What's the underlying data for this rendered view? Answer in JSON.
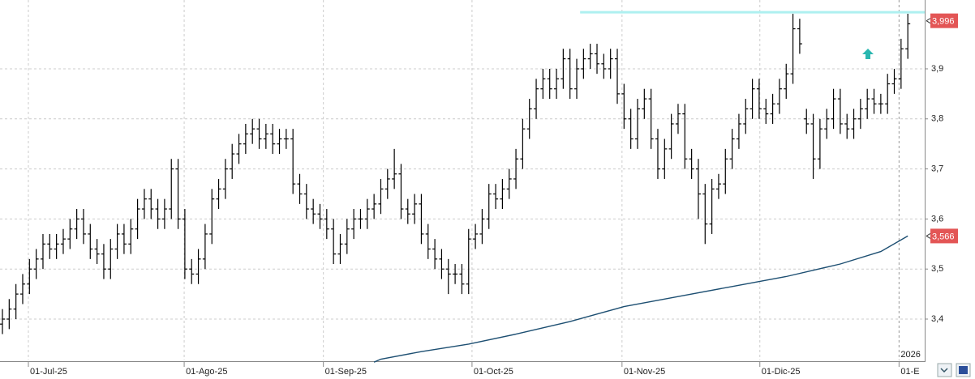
{
  "chart_data": {
    "type": "ohlc",
    "xlim": [
      -0.36,
      136.5
    ],
    "ylim": [
      3.3175,
      4.0375
    ],
    "yticks": [
      {
        "value": 3.4,
        "label": "3,4"
      },
      {
        "value": 3.5,
        "label": "3,5"
      },
      {
        "value": 3.6,
        "label": "3,6"
      },
      {
        "value": 3.7,
        "label": "3,7"
      },
      {
        "value": 3.8,
        "label": "3,8"
      },
      {
        "value": 3.9,
        "label": "3,9"
      }
    ],
    "xticks": [
      {
        "value": 3.84,
        "label": "01-Jul-25"
      },
      {
        "value": 26.9,
        "label": "01-Ago-25"
      },
      {
        "value": 47.5,
        "label": "01-Sep-25"
      },
      {
        "value": 69.5,
        "label": "01-Oct-25"
      },
      {
        "value": 91.7,
        "label": "01-Nov-25"
      },
      {
        "value": 112.1,
        "label": "01-Dic-25"
      },
      {
        "value": 132.7,
        "label": "01-E"
      }
    ],
    "year_label": "2026",
    "grid": true,
    "color": "#000000",
    "open": [
      3.39,
      3.4,
      3.42,
      3.45,
      3.47,
      3.5,
      3.52,
      3.55,
      3.54,
      3.55,
      3.56,
      3.58,
      3.6,
      3.57,
      3.54,
      3.53,
      3.5,
      3.54,
      3.57,
      3.55,
      3.58,
      3.62,
      3.64,
      3.62,
      3.6,
      3.62,
      3.7,
      3.6,
      3.5,
      3.49,
      3.52,
      3.57,
      3.64,
      3.66,
      3.7,
      3.73,
      3.75,
      3.77,
      3.78,
      3.76,
      3.77,
      3.75,
      3.76,
      3.76,
      3.67,
      3.65,
      3.62,
      3.61,
      3.6,
      3.58,
      3.53,
      3.55,
      3.58,
      3.6,
      3.6,
      3.62,
      3.63,
      3.66,
      3.68,
      3.69,
      3.62,
      3.61,
      3.63,
      3.57,
      3.54,
      3.52,
      3.5,
      3.49,
      3.49,
      3.47,
      3.56,
      3.57,
      3.6,
      3.65,
      3.64,
      3.66,
      3.68,
      3.72,
      3.78,
      3.82,
      3.86,
      3.88,
      3.86,
      3.88,
      3.92,
      3.86,
      3.9,
      3.92,
      3.93,
      3.91,
      3.9,
      3.92,
      3.85,
      3.8,
      3.76,
      3.82,
      3.84,
      3.76,
      3.7,
      3.74,
      3.79,
      3.81,
      3.72,
      3.7,
      3.65,
      3.59,
      3.66,
      3.67,
      3.72,
      3.76,
      3.79,
      3.82,
      3.86,
      3.82,
      3.81,
      3.83,
      3.86,
      3.89,
      3.98,
      3.8,
      3.79,
      3.72,
      3.78,
      3.8,
      3.84,
      3.79,
      3.78,
      3.8,
      3.82,
      3.84,
      3.83,
      3.83,
      3.87,
      3.88,
      3.94
    ],
    "high": [
      3.42,
      3.44,
      3.47,
      3.49,
      3.52,
      3.54,
      3.57,
      3.57,
      3.57,
      3.58,
      3.6,
      3.62,
      3.62,
      3.59,
      3.56,
      3.55,
      3.56,
      3.59,
      3.59,
      3.6,
      3.64,
      3.66,
      3.66,
      3.64,
      3.64,
      3.72,
      3.72,
      3.62,
      3.52,
      3.54,
      3.59,
      3.66,
      3.68,
      3.72,
      3.75,
      3.77,
      3.79,
      3.8,
      3.8,
      3.79,
      3.79,
      3.78,
      3.78,
      3.78,
      3.69,
      3.67,
      3.64,
      3.63,
      3.62,
      3.6,
      3.57,
      3.6,
      3.62,
      3.62,
      3.64,
      3.65,
      3.68,
      3.7,
      3.74,
      3.71,
      3.64,
      3.65,
      3.65,
      3.59,
      3.56,
      3.54,
      3.52,
      3.51,
      3.51,
      3.58,
      3.59,
      3.62,
      3.67,
      3.67,
      3.68,
      3.7,
      3.74,
      3.8,
      3.84,
      3.88,
      3.9,
      3.9,
      3.9,
      3.94,
      3.94,
      3.92,
      3.94,
      3.95,
      3.95,
      3.93,
      3.94,
      3.94,
      3.87,
      3.82,
      3.84,
      3.86,
      3.86,
      3.78,
      3.76,
      3.81,
      3.83,
      3.83,
      3.74,
      3.72,
      3.67,
      3.68,
      3.69,
      3.74,
      3.78,
      3.81,
      3.84,
      3.88,
      3.88,
      3.84,
      3.85,
      3.88,
      3.91,
      4.01,
      4.0,
      3.82,
      3.81,
      3.8,
      3.82,
      3.86,
      3.86,
      3.81,
      3.82,
      3.84,
      3.86,
      3.86,
      3.85,
      3.89,
      3.9,
      3.96,
      4.01
    ],
    "low": [
      3.37,
      3.38,
      3.4,
      3.43,
      3.45,
      3.48,
      3.5,
      3.52,
      3.52,
      3.53,
      3.54,
      3.56,
      3.55,
      3.52,
      3.51,
      3.48,
      3.48,
      3.52,
      3.53,
      3.53,
      3.56,
      3.6,
      3.6,
      3.58,
      3.58,
      3.6,
      3.58,
      3.48,
      3.47,
      3.47,
      3.5,
      3.55,
      3.62,
      3.64,
      3.68,
      3.71,
      3.73,
      3.75,
      3.74,
      3.74,
      3.73,
      3.73,
      3.74,
      3.65,
      3.63,
      3.6,
      3.59,
      3.58,
      3.56,
      3.51,
      3.51,
      3.53,
      3.56,
      3.58,
      3.58,
      3.6,
      3.61,
      3.64,
      3.66,
      3.6,
      3.59,
      3.59,
      3.55,
      3.52,
      3.5,
      3.48,
      3.45,
      3.47,
      3.45,
      3.45,
      3.54,
      3.55,
      3.58,
      3.62,
      3.62,
      3.64,
      3.66,
      3.7,
      3.76,
      3.8,
      3.84,
      3.84,
      3.84,
      3.86,
      3.84,
      3.84,
      3.88,
      3.9,
      3.89,
      3.88,
      3.88,
      3.83,
      3.78,
      3.74,
      3.74,
      3.8,
      3.74,
      3.68,
      3.68,
      3.72,
      3.77,
      3.7,
      3.68,
      3.6,
      3.55,
      3.57,
      3.64,
      3.65,
      3.7,
      3.74,
      3.77,
      3.8,
      3.8,
      3.79,
      3.79,
      3.81,
      3.84,
      3.87,
      3.93,
      3.77,
      3.68,
      3.7,
      3.76,
      3.78,
      3.77,
      3.76,
      3.76,
      3.78,
      3.8,
      3.81,
      3.81,
      3.81,
      3.85,
      3.86,
      3.92
    ],
    "close": [
      3.4,
      3.42,
      3.45,
      3.47,
      3.5,
      3.52,
      3.55,
      3.54,
      3.55,
      3.56,
      3.58,
      3.6,
      3.57,
      3.54,
      3.53,
      3.5,
      3.54,
      3.57,
      3.55,
      3.58,
      3.62,
      3.64,
      3.62,
      3.6,
      3.62,
      3.7,
      3.6,
      3.5,
      3.49,
      3.52,
      3.57,
      3.64,
      3.66,
      3.7,
      3.73,
      3.75,
      3.77,
      3.78,
      3.76,
      3.77,
      3.75,
      3.76,
      3.76,
      3.67,
      3.65,
      3.62,
      3.61,
      3.6,
      3.58,
      3.53,
      3.55,
      3.58,
      3.6,
      3.6,
      3.62,
      3.63,
      3.66,
      3.68,
      3.69,
      3.62,
      3.61,
      3.63,
      3.57,
      3.54,
      3.52,
      3.5,
      3.49,
      3.49,
      3.47,
      3.56,
      3.57,
      3.6,
      3.65,
      3.64,
      3.66,
      3.68,
      3.72,
      3.78,
      3.82,
      3.86,
      3.88,
      3.86,
      3.88,
      3.92,
      3.86,
      3.9,
      3.92,
      3.93,
      3.91,
      3.9,
      3.92,
      3.85,
      3.8,
      3.76,
      3.82,
      3.84,
      3.76,
      3.7,
      3.74,
      3.79,
      3.81,
      3.72,
      3.7,
      3.65,
      3.59,
      3.66,
      3.67,
      3.72,
      3.76,
      3.79,
      3.82,
      3.86,
      3.82,
      3.81,
      3.83,
      3.86,
      3.89,
      3.98,
      3.95,
      3.79,
      3.72,
      3.78,
      3.8,
      3.84,
      3.79,
      3.78,
      3.8,
      3.82,
      3.84,
      3.83,
      3.83,
      3.87,
      3.88,
      3.94,
      3.99
    ],
    "average": {
      "color": "#1d4f72",
      "x": [
        55,
        56,
        62,
        69,
        76,
        84,
        88,
        92,
        100,
        108,
        116,
        124,
        130,
        134
      ],
      "values": [
        3.314,
        3.32,
        3.335,
        3.35,
        3.37,
        3.395,
        3.41,
        3.425,
        3.445,
        3.465,
        3.485,
        3.51,
        3.535,
        3.566
      ]
    },
    "hline": {
      "value": 4.013,
      "x": [
        85.5,
        136.5
      ],
      "color": "#aef0f0"
    },
    "markers": {
      "values": [
        3.996,
        3.566
      ],
      "value_labels": [
        "3,996",
        "3,566"
      ],
      "color": "#e35555"
    }
  }
}
